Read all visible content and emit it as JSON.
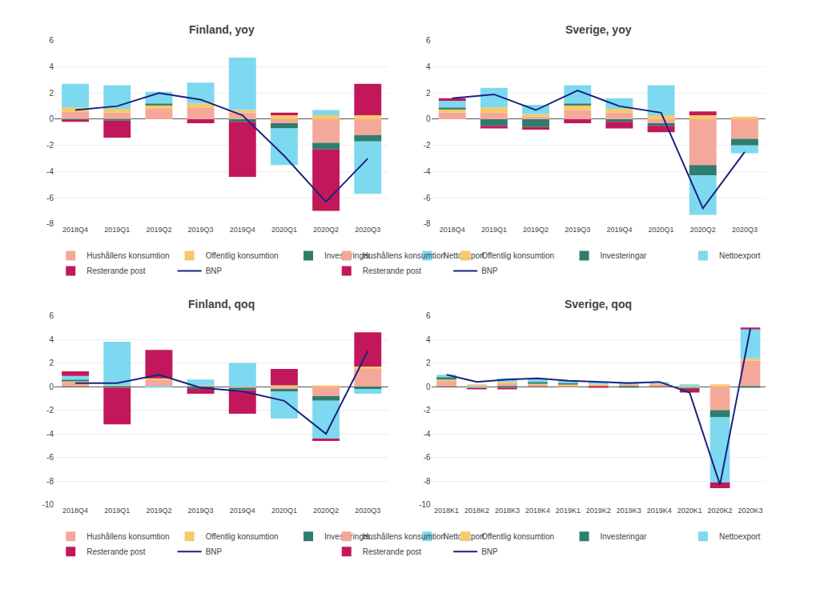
{
  "chart_data": [
    {
      "type": "bar",
      "title": "Finland, yoy",
      "categories": [
        "2018Q4",
        "2019Q1",
        "2019Q2",
        "2019Q3",
        "2019Q4",
        "2020Q1",
        "2020Q2",
        "2020Q3"
      ],
      "series": [
        {
          "name": "Hushållens konsumtion",
          "color": "#F4A89A",
          "values": [
            0.6,
            0.5,
            0.8,
            0.9,
            0.5,
            -0.3,
            -1.8,
            -1.2
          ]
        },
        {
          "name": "Offentlig konsumtion",
          "color": "#F6C96B",
          "values": [
            0.3,
            0.3,
            0.3,
            0.3,
            0.2,
            0.3,
            0.3,
            0.3
          ]
        },
        {
          "name": "Investeringar",
          "color": "#2E7D6E",
          "values": [
            -0.1,
            -0.1,
            0.1,
            0.0,
            -0.2,
            -0.4,
            -0.5,
            -0.5
          ]
        },
        {
          "name": "Nettoexport",
          "color": "#7DD9F0",
          "values": [
            1.8,
            1.8,
            0.9,
            1.6,
            4.0,
            -2.8,
            0.4,
            -4.0
          ]
        },
        {
          "name": "Resterande post",
          "color": "#C2185B",
          "values": [
            -0.1,
            -1.3,
            0.0,
            -0.3,
            -4.2,
            0.2,
            -4.7,
            2.4
          ]
        },
        {
          "name": "BNP",
          "type": "line",
          "color": "#1A237E",
          "values": [
            0.7,
            1.0,
            2.0,
            1.5,
            0.3,
            -2.8,
            -6.3,
            -3.0
          ]
        }
      ],
      "ylim": [
        -8,
        6
      ],
      "yticks": [
        -8,
        -6,
        -4,
        -2,
        0,
        2,
        4,
        6
      ],
      "grid": true,
      "stacked": true,
      "legend": "bottom"
    },
    {
      "type": "bar",
      "title": "Sverige, yoy",
      "categories": [
        "2018Q4",
        "2019Q1",
        "2019Q2",
        "2019Q3",
        "2019Q4",
        "2020Q1",
        "2020Q2",
        "2020Q3"
      ],
      "series": [
        {
          "name": "Hushållens konsumtion",
          "color": "#F4A89A",
          "values": [
            0.5,
            0.5,
            0.2,
            0.7,
            0.5,
            -0.3,
            -3.5,
            -1.5
          ]
        },
        {
          "name": "Offentlig konsumtion",
          "color": "#F6C96B",
          "values": [
            0.3,
            0.4,
            0.2,
            0.4,
            0.3,
            0.3,
            0.3,
            0.2
          ]
        },
        {
          "name": "Investeringar",
          "color": "#2E7D6E",
          "values": [
            0.1,
            -0.5,
            -0.6,
            0.1,
            -0.2,
            -0.2,
            -0.8,
            -0.5
          ]
        },
        {
          "name": "Nettoexport",
          "color": "#7DD9F0",
          "values": [
            0.5,
            1.5,
            0.7,
            1.4,
            0.8,
            2.3,
            -3.0,
            -0.6
          ]
        },
        {
          "name": "Resterande post",
          "color": "#C2185B",
          "values": [
            0.2,
            -0.2,
            -0.2,
            -0.3,
            -0.5,
            -0.5,
            0.3,
            0.0
          ]
        },
        {
          "name": "BNP",
          "type": "line",
          "color": "#1A237E",
          "values": [
            1.6,
            1.9,
            0.7,
            2.2,
            1.0,
            0.5,
            -6.8,
            -2.5
          ]
        }
      ],
      "ylim": [
        -8,
        6
      ],
      "yticks": [
        -8,
        -6,
        -4,
        -2,
        0,
        2,
        4,
        6
      ],
      "grid": true,
      "stacked": true,
      "legend": "bottom"
    },
    {
      "type": "bar",
      "title": "Finland, qoq",
      "categories": [
        "2018Q4",
        "2019Q1",
        "2019Q2",
        "2019Q3",
        "2019Q4",
        "2020Q1",
        "2020Q2",
        "2020Q3"
      ],
      "series": [
        {
          "name": "Hushållens konsumtion",
          "color": "#F4A89A",
          "values": [
            0.4,
            0.0,
            0.6,
            0.1,
            -0.1,
            -0.2,
            -0.8,
            1.5
          ]
        },
        {
          "name": "Offentlig konsumtion",
          "color": "#F6C96B",
          "values": [
            0.1,
            0.1,
            0.1,
            0.0,
            0.0,
            0.1,
            0.1,
            0.2
          ]
        },
        {
          "name": "Investeringar",
          "color": "#2E7D6E",
          "values": [
            0.1,
            -0.1,
            0.0,
            -0.2,
            -0.2,
            -0.2,
            -0.4,
            -0.2
          ]
        },
        {
          "name": "Nettoexport",
          "color": "#7DD9F0",
          "values": [
            0.3,
            3.7,
            -0.1,
            0.5,
            2.0,
            -2.3,
            -3.2,
            -0.4
          ]
        },
        {
          "name": "Resterande post",
          "color": "#C2185B",
          "values": [
            0.4,
            -3.1,
            2.4,
            -0.4,
            -2.0,
            1.4,
            -0.2,
            2.9
          ]
        },
        {
          "name": "BNP",
          "type": "line",
          "color": "#1A237E",
          "values": [
            0.3,
            0.3,
            1.0,
            -0.1,
            -0.4,
            -1.2,
            -4.0,
            3.0
          ]
        }
      ],
      "ylim": [
        -10,
        6
      ],
      "yticks": [
        -10,
        -8,
        -6,
        -4,
        -2,
        0,
        2,
        4,
        6
      ],
      "grid": true,
      "stacked": true,
      "legend": "bottom"
    },
    {
      "type": "bar",
      "title": "Sverige, qoq",
      "categories": [
        "2018K1",
        "2018K2",
        "2018K3",
        "2018K4",
        "2019K1",
        "2019K2",
        "2019K3",
        "2019K4",
        "2020K1",
        "2020K2",
        "2020K3"
      ],
      "series": [
        {
          "name": "Hushållens konsumtion",
          "color": "#F4A89A",
          "values": [
            0.5,
            0.1,
            0.3,
            0.2,
            0.1,
            0.1,
            0.2,
            0.2,
            -0.1,
            -2.0,
            2.2
          ]
        },
        {
          "name": "Offentlig konsumtion",
          "color": "#F6C96B",
          "values": [
            0.1,
            0.1,
            0.1,
            0.1,
            0.1,
            0.1,
            0.1,
            0.1,
            0.1,
            0.2,
            0.2
          ]
        },
        {
          "name": "Investeringar",
          "color": "#2E7D6E",
          "values": [
            0.2,
            0.0,
            -0.1,
            0.1,
            0.1,
            0.0,
            -0.1,
            0.0,
            -0.1,
            -0.6,
            -0.1
          ]
        },
        {
          "name": "Nettoexport",
          "color": "#7DD9F0",
          "values": [
            0.2,
            -0.1,
            0.3,
            0.3,
            0.2,
            0.2,
            0.1,
            0.1,
            0.1,
            -5.5,
            2.5
          ]
        },
        {
          "name": "Resterande post",
          "color": "#C2185B",
          "values": [
            0.0,
            -0.1,
            -0.1,
            0.0,
            0.0,
            -0.1,
            0.0,
            0.0,
            -0.3,
            -0.5,
            0.1
          ]
        },
        {
          "name": "BNP",
          "type": "line",
          "color": "#1A237E",
          "values": [
            1.0,
            0.4,
            0.6,
            0.7,
            0.5,
            0.4,
            0.3,
            0.4,
            -0.5,
            -8.3,
            4.9
          ]
        }
      ],
      "ylim": [
        -10,
        6
      ],
      "yticks": [
        -10,
        -8,
        -6,
        -4,
        -2,
        0,
        2,
        4,
        6
      ],
      "grid": true,
      "stacked": true,
      "legend": "bottom"
    }
  ]
}
